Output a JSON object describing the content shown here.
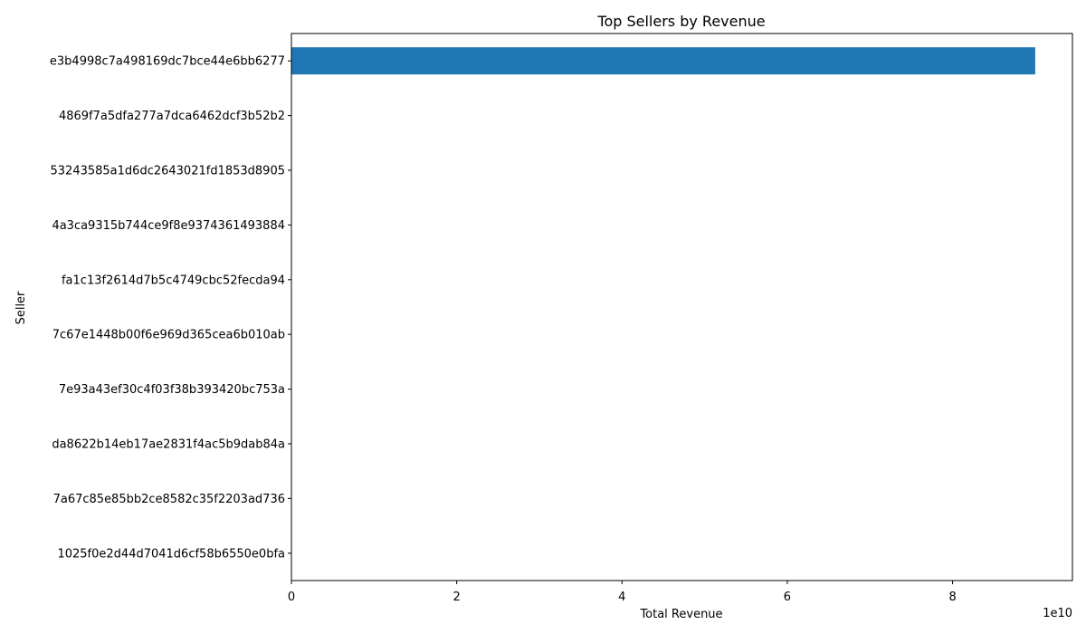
{
  "chart_data": {
    "type": "bar",
    "orientation": "horizontal",
    "title": "Top Sellers by Revenue",
    "xlabel": "Total Revenue",
    "ylabel": "Seller",
    "x_offset_label": "1e10",
    "xlim": [
      0,
      9.45
    ],
    "xticks": [
      0,
      2,
      4,
      6,
      8
    ],
    "grid": false,
    "bar_color": "#1f77b4",
    "categories": [
      "1025f0e2d44d7041d6cf58b6550e0bfa",
      "7a67c85e85bb2ce8582c35f2203ad736",
      "da8622b14eb17ae2831f4ac5b9dab84a",
      "7e93a43ef30c4f03f38b393420bc753a",
      "7c67e1448b00f6e969d365cea6b010ab",
      "fa1c13f2614d7b5c4749cbc52fecda94",
      "4a3ca9315b744ce9f8e9374361493884",
      "53243585a1d6dc2643021fd1853d8905",
      "4869f7a5dfa277a7dca6462dcf3b52b2",
      "e3b4998c7a498169dc7bce44e6bb6277"
    ],
    "values": [
      0,
      0,
      0,
      0,
      0,
      0,
      0,
      0,
      0,
      9.0
    ]
  }
}
